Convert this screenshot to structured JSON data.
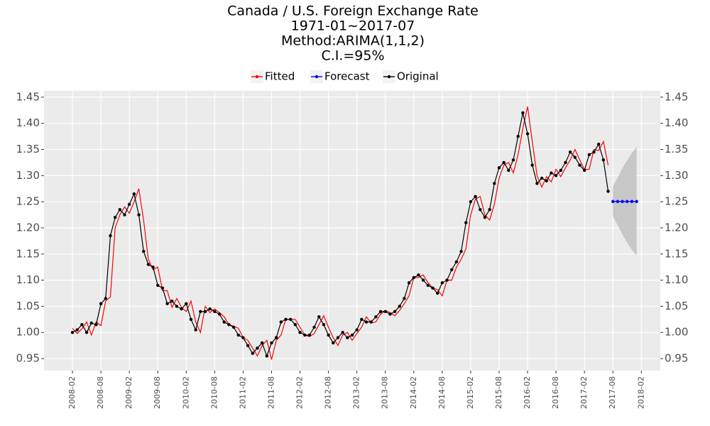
{
  "chart_data": {
    "type": "line",
    "title": [
      "Canada / U.S. Foreign Exchange Rate",
      "1971-01~2017-07",
      "Method:ARIMA(1,1,2)",
      "C.I.=95%"
    ],
    "legend": "top",
    "grid": true,
    "x": [
      "2008-02",
      "2008-03",
      "2008-04",
      "2008-05",
      "2008-06",
      "2008-07",
      "2008-08",
      "2008-09",
      "2008-10",
      "2008-11",
      "2008-12",
      "2009-01",
      "2009-02",
      "2009-03",
      "2009-04",
      "2009-05",
      "2009-06",
      "2009-07",
      "2009-08",
      "2009-09",
      "2009-10",
      "2009-11",
      "2009-12",
      "2010-01",
      "2010-02",
      "2010-03",
      "2010-04",
      "2010-05",
      "2010-06",
      "2010-07",
      "2010-08",
      "2010-09",
      "2010-10",
      "2010-11",
      "2010-12",
      "2011-01",
      "2011-02",
      "2011-03",
      "2011-04",
      "2011-05",
      "2011-06",
      "2011-07",
      "2011-08",
      "2011-09",
      "2011-10",
      "2011-11",
      "2011-12",
      "2012-01",
      "2012-02",
      "2012-03",
      "2012-04",
      "2012-05",
      "2012-06",
      "2012-07",
      "2012-08",
      "2012-09",
      "2012-10",
      "2012-11",
      "2012-12",
      "2013-01",
      "2013-02",
      "2013-03",
      "2013-04",
      "2013-05",
      "2013-06",
      "2013-07",
      "2013-08",
      "2013-09",
      "2013-10",
      "2013-11",
      "2013-12",
      "2014-01",
      "2014-02",
      "2014-03",
      "2014-04",
      "2014-05",
      "2014-06",
      "2014-07",
      "2014-08",
      "2014-09",
      "2014-10",
      "2014-11",
      "2014-12",
      "2015-01",
      "2015-02",
      "2015-03",
      "2015-04",
      "2015-05",
      "2015-06",
      "2015-07",
      "2015-08",
      "2015-09",
      "2015-10",
      "2015-11",
      "2015-12",
      "2016-01",
      "2016-02",
      "2016-03",
      "2016-04",
      "2016-05",
      "2016-06",
      "2016-07",
      "2016-08",
      "2016-09",
      "2016-10",
      "2016-11",
      "2016-12",
      "2017-01",
      "2017-02",
      "2017-03",
      "2017-04",
      "2017-05",
      "2017-06",
      "2017-07"
    ],
    "series": [
      {
        "name": "Fitted",
        "color": "#ff0000",
        "points": false,
        "values": [
          1.008,
          0.998,
          1.007,
          1.02,
          0.995,
          1.02,
          1.013,
          1.06,
          1.068,
          1.2,
          1.225,
          1.24,
          1.228,
          1.25,
          1.275,
          1.215,
          1.14,
          1.12,
          1.125,
          1.08,
          1.08,
          1.048,
          1.065,
          1.048,
          1.04,
          1.06,
          1.02,
          1.0,
          1.05,
          1.038,
          1.045,
          1.038,
          1.03,
          1.015,
          1.012,
          1.008,
          0.99,
          0.985,
          0.97,
          0.955,
          0.975,
          0.985,
          0.948,
          0.985,
          0.995,
          1.025,
          1.025,
          1.025,
          1.01,
          0.995,
          0.992,
          0.998,
          1.015,
          1.032,
          1.01,
          0.99,
          0.975,
          0.995,
          1.0,
          0.985,
          0.998,
          1.01,
          1.03,
          1.018,
          1.02,
          1.035,
          1.042,
          1.038,
          1.032,
          1.042,
          1.055,
          1.07,
          1.105,
          1.105,
          1.11,
          1.095,
          1.085,
          1.082,
          1.07,
          1.1,
          1.1,
          1.125,
          1.14,
          1.16,
          1.225,
          1.255,
          1.26,
          1.225,
          1.215,
          1.245,
          1.295,
          1.32,
          1.325,
          1.305,
          1.34,
          1.39,
          1.432,
          1.365,
          1.3,
          1.278,
          1.298,
          1.288,
          1.312,
          1.298,
          1.315,
          1.33,
          1.35,
          1.33,
          1.312,
          1.312,
          1.35,
          1.348,
          1.365,
          1.32
        ]
      },
      {
        "name": "Forecast",
        "color": "#0000ff",
        "points": true,
        "x": [
          "2017-08",
          "2017-09",
          "2017-10",
          "2017-11",
          "2017-12",
          "2018-01"
        ],
        "values": [
          1.2505,
          1.2505,
          1.2505,
          1.2505,
          1.2505,
          1.2505
        ]
      },
      {
        "name": "Original",
        "color": "#000000",
        "points": true,
        "values": [
          1.0,
          1.005,
          1.015,
          1.0,
          1.018,
          1.015,
          1.055,
          1.065,
          1.185,
          1.22,
          1.235,
          1.225,
          1.245,
          1.265,
          1.225,
          1.155,
          1.13,
          1.125,
          1.09,
          1.085,
          1.055,
          1.06,
          1.05,
          1.045,
          1.055,
          1.025,
          1.005,
          1.04,
          1.04,
          1.045,
          1.04,
          1.035,
          1.02,
          1.015,
          1.01,
          0.995,
          0.99,
          0.975,
          0.96,
          0.97,
          0.98,
          0.955,
          0.98,
          0.99,
          1.02,
          1.025,
          1.025,
          1.015,
          1.0,
          0.995,
          0.995,
          1.01,
          1.03,
          1.015,
          0.995,
          0.98,
          0.99,
          1.0,
          0.99,
          0.995,
          1.005,
          1.025,
          1.02,
          1.02,
          1.03,
          1.04,
          1.04,
          1.035,
          1.04,
          1.05,
          1.065,
          1.095,
          1.105,
          1.11,
          1.1,
          1.09,
          1.085,
          1.075,
          1.095,
          1.1,
          1.12,
          1.135,
          1.155,
          1.21,
          1.25,
          1.26,
          1.235,
          1.22,
          1.235,
          1.285,
          1.315,
          1.325,
          1.31,
          1.33,
          1.375,
          1.42,
          1.38,
          1.32,
          1.285,
          1.295,
          1.29,
          1.305,
          1.3,
          1.31,
          1.325,
          1.345,
          1.335,
          1.32,
          1.31,
          1.34,
          1.345,
          1.36,
          1.33,
          1.27
        ]
      }
    ],
    "band": {
      "color": "#bebebe",
      "x": [
        "2017-08",
        "2017-09",
        "2017-10",
        "2017-11",
        "2017-12",
        "2018-01"
      ],
      "lower": [
        1.222,
        1.205,
        1.187,
        1.172,
        1.158,
        1.147
      ],
      "upper": [
        1.279,
        1.296,
        1.314,
        1.329,
        1.343,
        1.355
      ]
    },
    "xlim": [
      "2007-08",
      "2018-06"
    ],
    "xticks": [
      "2008-02",
      "2008-08",
      "2009-02",
      "2009-08",
      "2010-02",
      "2010-08",
      "2011-02",
      "2011-08",
      "2012-02",
      "2012-08",
      "2013-02",
      "2013-08",
      "2014-02",
      "2014-08",
      "2015-02",
      "2015-08",
      "2016-02",
      "2016-08",
      "2017-02",
      "2017-08",
      "2018-02"
    ],
    "ylim": [
      0.927,
      1.462
    ],
    "yticks": [
      0.95,
      {
        "value": 1,
        "label": "1.00"
      },
      1.05,
      {
        "value": 1.1,
        "label": "1.10"
      },
      1.15,
      {
        "value": 1.2,
        "label": "1.20"
      },
      1.25,
      {
        "value": 1.3,
        "label": "1.30"
      },
      1.35,
      {
        "value": 1.4,
        "label": "1.40"
      },
      1.45
    ]
  }
}
